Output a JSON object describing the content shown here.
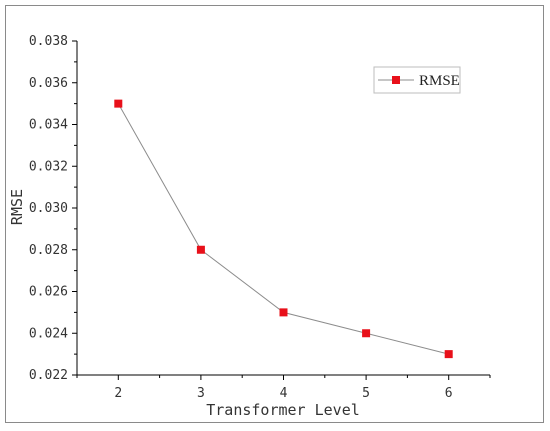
{
  "chart_data": {
    "type": "line",
    "xlabel": "Transformer Level",
    "ylabel": "RMSE",
    "x": [
      2,
      3,
      4,
      5,
      6
    ],
    "x_ticks": [
      "2",
      "3",
      "4",
      "5",
      "6"
    ],
    "xlim": [
      1.5,
      6.5
    ],
    "ylim": [
      0.022,
      0.038
    ],
    "y_ticks": [
      "0.022",
      "0.024",
      "0.026",
      "0.028",
      "0.030",
      "0.032",
      "0.034",
      "0.036",
      "0.038"
    ],
    "grid": false,
    "legend_position": "top-right",
    "series": [
      {
        "name": "RMSE",
        "values": [
          0.035,
          0.028,
          0.025,
          0.024,
          0.023
        ]
      }
    ]
  },
  "colors": {
    "line": "#8c8c8c",
    "marker": "#e8101a",
    "axis": "#000000"
  }
}
